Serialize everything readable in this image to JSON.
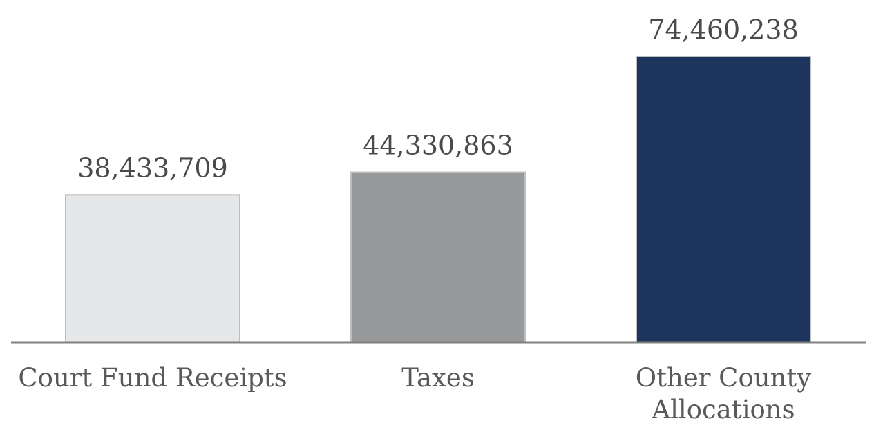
{
  "chart_data": {
    "type": "bar",
    "categories": [
      [
        "Court Fund Receipts"
      ],
      [
        "Taxes"
      ],
      [
        "Other County",
        "Allocations"
      ]
    ],
    "values": [
      38433709,
      44330863,
      74460238
    ],
    "value_labels": [
      "38,433,709",
      "44,330,863",
      "74,460,238"
    ],
    "colors": [
      "#e6e7e8",
      "#98999b",
      "#1d355c"
    ],
    "bar_stroke": "#bcbec0",
    "axis_color": "#808080",
    "title": "",
    "xlabel": "",
    "ylabel": "",
    "ylim": [
      0,
      74460238
    ],
    "grid": false,
    "legend": "none"
  }
}
